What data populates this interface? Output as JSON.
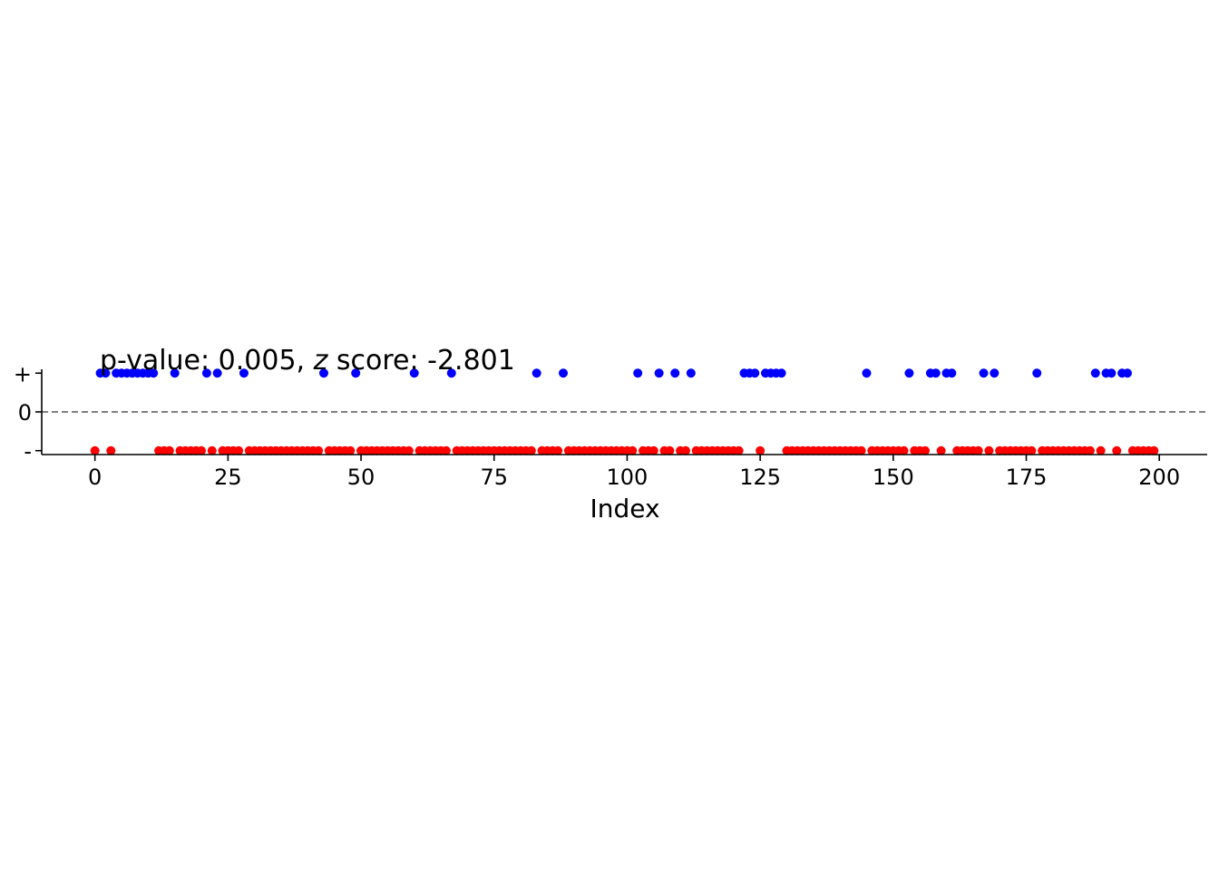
{
  "chart_data": {
    "type": "scatter",
    "title": "",
    "annotation": {
      "prefix": "p-value: 0.005, ",
      "z": "z",
      "suffix": " score: -2.801"
    },
    "xlabel": "Index",
    "ylabel": "",
    "xlim": [
      -10,
      209
    ],
    "ylim": [
      -1.1,
      1.1
    ],
    "x_ticks": [
      0,
      25,
      50,
      75,
      100,
      125,
      150,
      175,
      200
    ],
    "y_ticks": [
      {
        "value": 1,
        "label": "+"
      },
      {
        "value": 0,
        "label": "0"
      },
      {
        "value": -1,
        "label": "-"
      }
    ],
    "reference_line": {
      "y": 0,
      "style": "dashed",
      "color": "#808080"
    },
    "grid": false,
    "legend": "none",
    "colors": {
      "positive": "#0000ff",
      "negative": "#ff0000"
    },
    "series": [
      {
        "y": 1,
        "color": "#0000ff",
        "x": [
          1,
          2,
          4,
          5,
          6,
          7,
          8,
          9,
          10,
          11,
          15,
          21,
          23,
          28,
          43,
          49,
          60,
          67,
          83,
          88,
          102,
          106,
          109,
          112,
          122,
          123,
          124,
          126,
          127,
          128,
          129,
          145,
          153,
          157,
          158,
          160,
          161,
          167,
          169,
          177,
          188,
          190,
          191,
          193,
          194
        ]
      },
      {
        "y": -1,
        "color": "#ff0000",
        "x": [
          0,
          3,
          12,
          13,
          14,
          16,
          17,
          18,
          19,
          20,
          22,
          24,
          25,
          26,
          27,
          29,
          30,
          31,
          32,
          33,
          34,
          35,
          36,
          37,
          38,
          39,
          40,
          41,
          42,
          44,
          45,
          46,
          47,
          48,
          50,
          51,
          52,
          53,
          54,
          55,
          56,
          57,
          58,
          59,
          61,
          62,
          63,
          64,
          65,
          66,
          68,
          69,
          70,
          71,
          72,
          73,
          74,
          75,
          76,
          77,
          78,
          79,
          80,
          81,
          82,
          84,
          85,
          86,
          87,
          89,
          90,
          91,
          92,
          93,
          94,
          95,
          96,
          97,
          98,
          99,
          100,
          101,
          103,
          104,
          105,
          107,
          108,
          110,
          111,
          113,
          114,
          115,
          116,
          117,
          118,
          119,
          120,
          121,
          125,
          130,
          131,
          132,
          133,
          134,
          135,
          136,
          137,
          138,
          139,
          140,
          141,
          142,
          143,
          144,
          146,
          147,
          148,
          149,
          150,
          151,
          152,
          154,
          155,
          156,
          159,
          162,
          163,
          164,
          165,
          166,
          168,
          170,
          171,
          172,
          173,
          174,
          175,
          176,
          178,
          179,
          180,
          181,
          182,
          183,
          184,
          185,
          186,
          187,
          189,
          192,
          195,
          196,
          197,
          198,
          199
        ]
      }
    ]
  }
}
